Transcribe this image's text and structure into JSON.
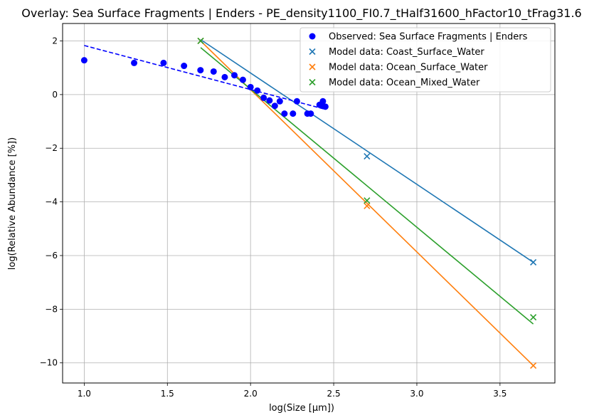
{
  "chart_data": {
    "type": "scatter",
    "title": "Overlay: Sea Surface Fragments | Enders - PE_density1100_FI0.7_tHalf31600_hFactor10_tFrag31.6",
    "xlabel": "log(Size [µm])",
    "ylabel": "log(Relative Abundance [%])",
    "xlim": [
      0.87,
      3.83
    ],
    "ylim": [
      -10.75,
      2.65
    ],
    "xticks": [
      1.0,
      1.5,
      2.0,
      2.5,
      3.0,
      3.5
    ],
    "xtick_labels": [
      "1.0",
      "1.5",
      "2.0",
      "2.5",
      "3.0",
      "3.5"
    ],
    "yticks": [
      2,
      0,
      -2,
      -4,
      -6,
      -8,
      -10
    ],
    "ytick_labels": [
      "2",
      "0",
      "−2",
      "−4",
      "−6",
      "−8",
      "−10"
    ],
    "grid": true,
    "legend_position": "top-right",
    "observed": {
      "name": "Observed: Sea Surface Fragments | Enders",
      "color": "#0000ff",
      "marker": "circle",
      "x": [
        1.0,
        1.3,
        1.477,
        1.6,
        1.699,
        1.778,
        1.845,
        1.903,
        1.954,
        2.0,
        2.041,
        2.079,
        2.114,
        2.146,
        2.176,
        2.204,
        2.255,
        2.279,
        2.342,
        2.362,
        2.415,
        2.431,
        2.435,
        2.45
      ],
      "y": [
        1.28,
        1.18,
        1.18,
        1.07,
        0.91,
        0.86,
        0.65,
        0.72,
        0.55,
        0.28,
        0.15,
        -0.12,
        -0.22,
        -0.42,
        -0.25,
        -0.71,
        -0.71,
        -0.25,
        -0.71,
        -0.71,
        -0.38,
        -0.41,
        -0.25,
        -0.45
      ],
      "fit_line": {
        "x": [
          1.0,
          2.45
        ],
        "y": [
          1.83,
          -0.55
        ],
        "color": "#0000ff",
        "style": "dashed"
      }
    },
    "series": [
      {
        "name": "Model data: Coast_Surface_Water",
        "color": "#1f77b4",
        "marker": "x",
        "x": [
          1.7,
          2.7,
          3.7
        ],
        "y": [
          2.0,
          -2.3,
          -6.25
        ],
        "fit_line": {
          "x": [
            1.7,
            3.7
          ],
          "y": [
            2.05,
            -6.25
          ]
        }
      },
      {
        "name": "Model data: Ocean_Surface_Water",
        "color": "#ff7f0e",
        "marker": "x",
        "x": [
          1.7,
          2.7,
          3.7
        ],
        "y": [
          2.0,
          -4.15,
          -10.1
        ],
        "fit_line": {
          "x": [
            1.7,
            3.7
          ],
          "y": [
            2.0,
            -10.1
          ]
        }
      },
      {
        "name": "Model data: Ocean_Mixed_Water",
        "color": "#2ca02c",
        "marker": "x",
        "x": [
          1.7,
          2.7,
          3.7
        ],
        "y": [
          2.0,
          -3.95,
          -8.3
        ],
        "fit_line": {
          "x": [
            1.7,
            3.7
          ],
          "y": [
            1.75,
            -8.55
          ]
        }
      }
    ]
  }
}
